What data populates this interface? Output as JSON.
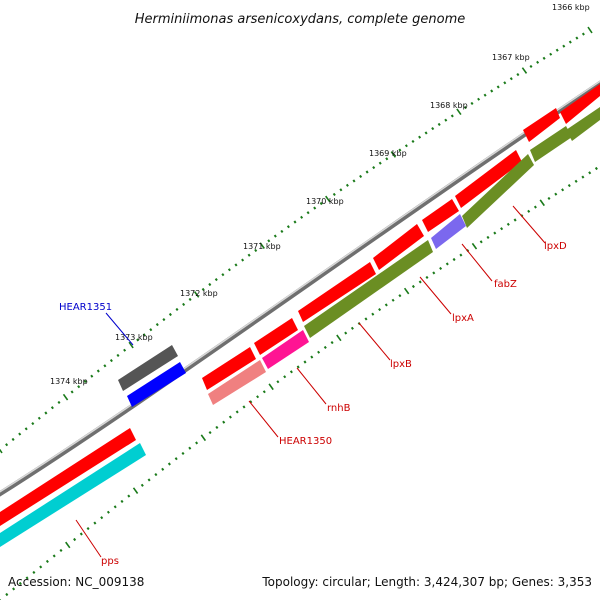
{
  "title": "Herminiimonas arsenicoxydans, complete genome",
  "footer": {
    "accession": "Accession: NC_009138",
    "summary": "Topology: circular; Length: 3,424,307 bp; Genes: 3,353"
  },
  "ticks": [
    "1366 kbp",
    "1367 kbp",
    "1368 kbp",
    "1369 kbp",
    "1370 kbp",
    "1371 kbp",
    "1372 kbp",
    "1373 kbp",
    "1374 kbp"
  ],
  "genes": [
    {
      "label": "lpxD",
      "color": "#ff0000",
      "cds_color": "#6b8e23"
    },
    {
      "label": "fabZ",
      "color": "#ff0000",
      "cds_color": "#7b68ee"
    },
    {
      "label": "lpxA",
      "color": "#ff0000",
      "cds_color": "#6b8e23"
    },
    {
      "label": "lpxB",
      "color": "#ff0000",
      "cds_color": "#6b8e23"
    },
    {
      "label": "rnhB",
      "color": "#ff0000",
      "cds_color": "#ff1493"
    },
    {
      "label": "HEAR1350",
      "color": "#ff0000",
      "cds_color": "#f08080"
    },
    {
      "label": "HEAR1351",
      "color": "#555555",
      "cds_color": "#0000ff"
    },
    {
      "label": "pps",
      "color": "#ff0000",
      "cds_color": "#00ced1"
    }
  ],
  "colors": {
    "backbone": "#888888",
    "tick": "#1a7a1a",
    "label_red": "#cc0000",
    "label_blue": "#0000cc"
  }
}
